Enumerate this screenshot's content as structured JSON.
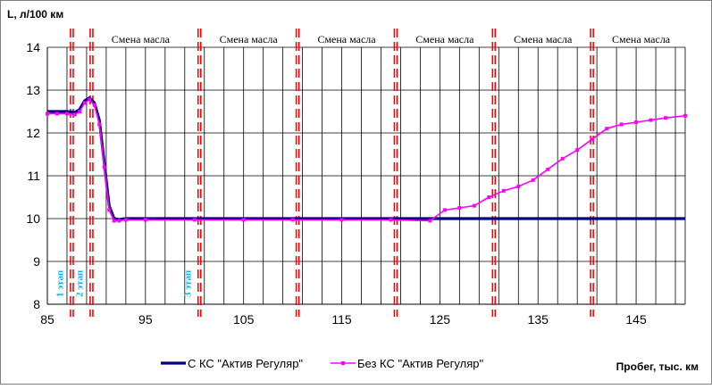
{
  "chart_data": {
    "type": "line",
    "ylabel": "L, л/100 км",
    "xlabel": "Пробег, тыс. км",
    "xlim": [
      85,
      150
    ],
    "ylim": [
      8,
      14
    ],
    "x_ticks": [
      85,
      95,
      105,
      115,
      125,
      135,
      145
    ],
    "y_ticks": [
      8,
      9,
      10,
      11,
      12,
      13,
      14
    ],
    "grid": true,
    "legend_position": "bottom",
    "series": [
      {
        "name": "С КС \"Актив Регуляр\"",
        "color": "#000080",
        "x": [
          85,
          86,
          87,
          87.8,
          88.3,
          88.8,
          89.3,
          89.8,
          90.3,
          90.8,
          91.3,
          91.8,
          92.3,
          93,
          95,
          100,
          105,
          110,
          115,
          120,
          125,
          130,
          135,
          140,
          145,
          150
        ],
        "y": [
          12.5,
          12.5,
          12.5,
          12.48,
          12.55,
          12.75,
          12.82,
          12.7,
          12.3,
          11.3,
          10.3,
          10.0,
          9.98,
          10.0,
          10.0,
          10.0,
          10.0,
          10.0,
          10.0,
          10.0,
          10.0,
          10.0,
          10.0,
          10.0,
          10.0,
          10.0
        ]
      },
      {
        "name": "Без КС \"Актив Регуляр\"",
        "color": "#ff00ff",
        "x": [
          85,
          86,
          87,
          87.8,
          88.3,
          88.8,
          89.3,
          89.8,
          90.3,
          90.8,
          91.3,
          91.8,
          92.3,
          93,
          95,
          100,
          105,
          110,
          115,
          120,
          124,
          125.5,
          127,
          128.5,
          130,
          131.5,
          133,
          134.5,
          136,
          137.5,
          139,
          140.5,
          142,
          143.5,
          145,
          146.5,
          148,
          150
        ],
        "y": [
          12.45,
          12.45,
          12.45,
          12.43,
          12.5,
          12.7,
          12.78,
          12.65,
          12.2,
          11.2,
          10.2,
          9.95,
          9.95,
          9.97,
          9.97,
          9.97,
          9.97,
          9.97,
          9.97,
          9.97,
          9.95,
          10.2,
          10.25,
          10.3,
          10.5,
          10.65,
          10.75,
          10.9,
          11.15,
          11.4,
          11.6,
          11.85,
          12.1,
          12.2,
          12.25,
          12.3,
          12.35,
          12.4
        ]
      }
    ],
    "phase_lines": [
      {
        "x": 87.5,
        "label": "1 этап"
      },
      {
        "x": 89.5,
        "label": "2 этап"
      },
      {
        "x": 100.5,
        "label": "3 этап"
      },
      {
        "x": 110.5,
        "label": ""
      },
      {
        "x": 120.5,
        "label": ""
      },
      {
        "x": 130.5,
        "label": ""
      },
      {
        "x": 140.5,
        "label": ""
      }
    ],
    "annotations": [
      {
        "x": 94.5,
        "text": "Смена масла"
      },
      {
        "x": 105.5,
        "text": "Смена масла"
      },
      {
        "x": 115.5,
        "text": "Смена масла"
      },
      {
        "x": 125.5,
        "text": "Смена масла"
      },
      {
        "x": 135.5,
        "text": "Смена масла"
      },
      {
        "x": 145.5,
        "text": "Смена масла"
      }
    ]
  },
  "colors": {
    "phase_line": "#ff0000",
    "phase_label": "#00b0f0",
    "grid": "#000000",
    "frame": "#808080"
  }
}
